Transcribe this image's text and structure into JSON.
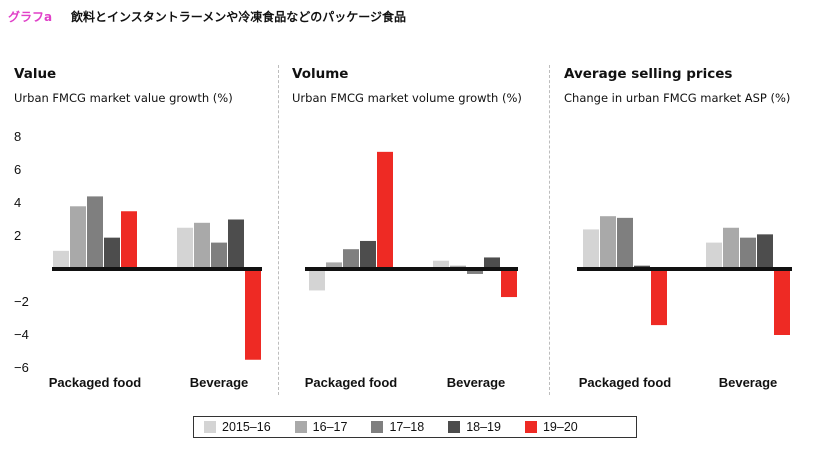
{
  "header": {
    "figure_label": "グラフa",
    "title": "飲料とインスタントラーメンや冷凍食品などのパッケージ食品"
  },
  "chart_data": [
    {
      "type": "bar",
      "title": "Value",
      "subtitle": "Urban FMCG market value growth (%)",
      "categories": [
        "Packaged food",
        "Beverage"
      ],
      "ylim": [
        -6,
        8
      ],
      "yticks": [
        8,
        6,
        4,
        2,
        -2,
        -4,
        -6
      ],
      "series": [
        {
          "name": "2015–16",
          "values": [
            1.1,
            2.5
          ]
        },
        {
          "name": "16–17",
          "values": [
            3.8,
            2.8
          ]
        },
        {
          "name": "17–18",
          "values": [
            4.4,
            1.6
          ]
        },
        {
          "name": "18–19",
          "values": [
            1.9,
            3.0
          ]
        },
        {
          "name": "19–20",
          "values": [
            3.5,
            -5.5
          ]
        }
      ]
    },
    {
      "type": "bar",
      "title": "Volume",
      "subtitle": "Urban FMCG market volume growth (%)",
      "categories": [
        "Packaged food",
        "Beverage"
      ],
      "ylim": [
        -6,
        8
      ],
      "series": [
        {
          "name": "2015–16",
          "values": [
            -1.3,
            0.5
          ]
        },
        {
          "name": "16–17",
          "values": [
            0.4,
            0.2
          ]
        },
        {
          "name": "17–18",
          "values": [
            1.2,
            -0.3
          ]
        },
        {
          "name": "18–19",
          "values": [
            1.7,
            0.7
          ]
        },
        {
          "name": "19–20",
          "values": [
            7.1,
            -1.7
          ]
        }
      ]
    },
    {
      "type": "bar",
      "title": "Average selling prices",
      "subtitle": "Change in urban FMCG market ASP (%)",
      "categories": [
        "Packaged food",
        "Beverage"
      ],
      "ylim": [
        -6,
        8
      ],
      "series": [
        {
          "name": "2015–16",
          "values": [
            2.4,
            1.6
          ]
        },
        {
          "name": "16–17",
          "values": [
            3.2,
            2.5
          ]
        },
        {
          "name": "17–18",
          "values": [
            3.1,
            1.9
          ]
        },
        {
          "name": "18–19",
          "values": [
            0.2,
            2.1
          ]
        },
        {
          "name": "19–20",
          "values": [
            -3.4,
            -4.0
          ]
        }
      ]
    }
  ],
  "legend": [
    {
      "label": "2015–16",
      "color": "#d4d4d4"
    },
    {
      "label": "16–17",
      "color": "#a9a9a9"
    },
    {
      "label": "17–18",
      "color": "#7f7f7f"
    },
    {
      "label": "18–19",
      "color": "#4d4d4d"
    },
    {
      "label": "19–20",
      "color": "#ee2a24"
    }
  ]
}
